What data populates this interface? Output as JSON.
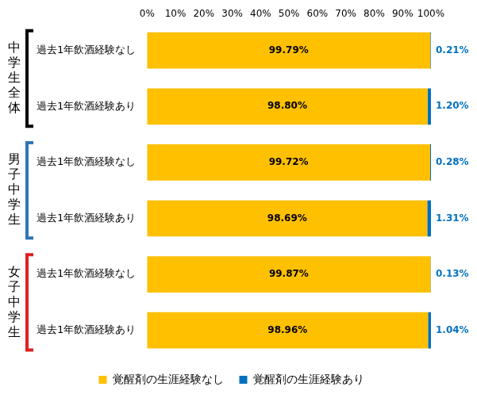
{
  "chart_data": {
    "type": "bar",
    "orientation": "horizontal",
    "stacked": true,
    "data_labels": true,
    "grid": false,
    "legend": "bottom",
    "categories": [
      "過去1年飲酒経験なし",
      "過去1年飲酒経験あり",
      "過去1年飲酒経験なし",
      "過去1年飲酒経験あり",
      "過去1年飲酒経験なし",
      "過去1年飲酒経験あり"
    ],
    "groups": [
      {
        "label": "中学生全体",
        "color": "#000000",
        "categories": [
          "過去1年飲酒経験なし",
          "過去1年飲酒経験あり"
        ]
      },
      {
        "label": "男子中学生",
        "color": "#2e75b6",
        "categories": [
          "過去1年飲酒経験なし",
          "過去1年飲酒経験あり"
        ]
      },
      {
        "label": "女子中学生",
        "color": "#e02020",
        "categories": [
          "過去1年飲酒経験なし",
          "過去1年飲酒経験あり"
        ]
      }
    ],
    "series": [
      {
        "name": "覚醒剤の生涯経験なし",
        "color": "#ffc000",
        "values": [
          99.79,
          98.8,
          99.72,
          98.69,
          99.87,
          98.96
        ],
        "value_labels": [
          "99.79%",
          "98.80%",
          "99.72%",
          "98.69%",
          "99.87%",
          "98.96%"
        ]
      },
      {
        "name": "覚醒剤の生涯経験あり",
        "color": "#0070c0",
        "values": [
          0.21,
          1.2,
          0.28,
          1.31,
          0.13,
          1.04
        ],
        "value_labels": [
          "0.21%",
          "1.20%",
          "0.28%",
          "1.31%",
          "0.13%",
          "1.04%"
        ]
      }
    ],
    "xlim": [
      0,
      100
    ],
    "xticks": [
      {
        "value": 0,
        "label": "0%"
      },
      {
        "value": 10,
        "label": "10%"
      },
      {
        "value": 20,
        "label": "20%"
      },
      {
        "value": 30,
        "label": "30%"
      },
      {
        "value": 40,
        "label": "40%"
      },
      {
        "value": 50,
        "label": "50%"
      },
      {
        "value": 60,
        "label": "60%"
      },
      {
        "value": 70,
        "label": "70%"
      },
      {
        "value": 80,
        "label": "80%"
      },
      {
        "value": 90,
        "label": "90%"
      },
      {
        "value": 100,
        "label": "100%"
      }
    ]
  }
}
